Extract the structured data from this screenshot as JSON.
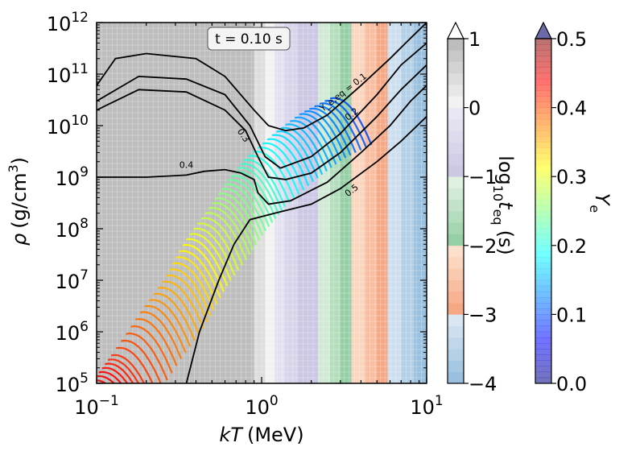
{
  "chart_data": {
    "type": "heatmap",
    "title": "",
    "annotation": {
      "time_label": "t = 0.10 s"
    },
    "xlabel": {
      "base": "kT",
      "unit": "(MeV)"
    },
    "ylabel": {
      "base": "ρ",
      "unit": "(g/cm",
      "sup": "3",
      "close": ")"
    },
    "xscale": "log",
    "yscale": "log",
    "xlim": [
      0.1,
      10
    ],
    "ylim": [
      100000,
      1000000000000
    ],
    "xticks": [
      {
        "value": 0.1,
        "base": "10",
        "exp": "−1"
      },
      {
        "value": 1,
        "base": "10",
        "exp": "0"
      },
      {
        "value": 10,
        "base": "10",
        "exp": "1"
      }
    ],
    "yticks": [
      {
        "value": 100000,
        "base": "10",
        "exp": "5"
      },
      {
        "value": 1000000,
        "base": "10",
        "exp": "6"
      },
      {
        "value": 10000000,
        "base": "10",
        "exp": "7"
      },
      {
        "value": 100000000,
        "base": "10",
        "exp": "8"
      },
      {
        "value": 1000000000,
        "base": "10",
        "exp": "9"
      },
      {
        "value": 10000000000,
        "base": "10",
        "exp": "10"
      },
      {
        "value": 100000000000,
        "base": "10",
        "exp": "11"
      },
      {
        "value": 1000000000000,
        "base": "10",
        "exp": "12"
      }
    ],
    "background_map": {
      "quantity": "log10 t_eq (s)",
      "columns": [
        {
          "x_min": 0.1,
          "x_max": 0.9,
          "log_t_eq": 0.85
        },
        {
          "x_min": 0.9,
          "x_max": 1.05,
          "log_t_eq": 0.4
        },
        {
          "x_min": 1.05,
          "x_max": 1.2,
          "log_t_eq": 0.05
        },
        {
          "x_min": 1.2,
          "x_max": 1.38,
          "log_t_eq": -0.2
        },
        {
          "x_min": 1.38,
          "x_max": 1.65,
          "log_t_eq": -0.55
        },
        {
          "x_min": 1.65,
          "x_max": 1.9,
          "log_t_eq": -0.85
        },
        {
          "x_min": 1.9,
          "x_max": 2.2,
          "log_t_eq": -1.0
        },
        {
          "x_min": 2.2,
          "x_max": 2.6,
          "log_t_eq": -1.3
        },
        {
          "x_min": 2.6,
          "x_max": 3.0,
          "log_t_eq": -1.55
        },
        {
          "x_min": 3.0,
          "x_max": 3.5,
          "log_t_eq": -1.9
        },
        {
          "x_min": 3.5,
          "x_max": 4.2,
          "log_t_eq": -2.3
        },
        {
          "x_min": 4.2,
          "x_max": 5.0,
          "log_t_eq": -2.65
        },
        {
          "x_min": 5.0,
          "x_max": 5.8,
          "log_t_eq": -2.95
        },
        {
          "x_min": 5.8,
          "x_max": 7.0,
          "log_t_eq": -3.3
        },
        {
          "x_min": 7.0,
          "x_max": 8.4,
          "log_t_eq": -3.6
        },
        {
          "x_min": 8.4,
          "x_max": 10.0,
          "log_t_eq": -3.85
        }
      ]
    },
    "ye_eq_contours": [
      {
        "level": 0.1,
        "label": "Y_e,eq = 0.1",
        "points": [
          [
            0.1,
            60000000000
          ],
          [
            0.13,
            200000000000
          ],
          [
            0.2,
            250000000000
          ],
          [
            0.4,
            200000000000
          ],
          [
            0.6,
            90000000000
          ],
          [
            0.9,
            20000000000
          ],
          [
            1.1,
            10000000000
          ],
          [
            1.4,
            8000000000
          ],
          [
            1.8,
            9000000000
          ],
          [
            2.5,
            16000000000
          ],
          [
            4.0,
            60000000000
          ],
          [
            6.0,
            200000000000
          ],
          [
            8.0,
            500000000000
          ],
          [
            10.0,
            1000000000000
          ]
        ]
      },
      {
        "level": 0.2,
        "label": "0.2",
        "points": [
          [
            0.1,
            30000000000
          ],
          [
            0.18,
            90000000000
          ],
          [
            0.35,
            80000000000
          ],
          [
            0.6,
            40000000000
          ],
          [
            0.85,
            10000000000
          ],
          [
            1.05,
            2500000000
          ],
          [
            1.3,
            1500000000
          ],
          [
            2.0,
            2500000000
          ],
          [
            3.0,
            7000000000
          ],
          [
            5.0,
            40000000000
          ],
          [
            7.0,
            150000000000
          ],
          [
            10.0,
            400000000000
          ]
        ]
      },
      {
        "level": 0.3,
        "label": "0.3",
        "points": [
          [
            0.1,
            20000000000
          ],
          [
            0.18,
            50000000000
          ],
          [
            0.35,
            45000000000
          ],
          [
            0.6,
            20000000000
          ],
          [
            0.8,
            8000000000
          ],
          [
            0.95,
            2500000000
          ],
          [
            1.1,
            1000000000
          ],
          [
            1.4,
            900000000
          ],
          [
            2.0,
            1200000000
          ],
          [
            3.0,
            3000000000
          ],
          [
            5.0,
            15000000000
          ],
          [
            7.0,
            50000000000
          ],
          [
            10.0,
            150000000000
          ]
        ]
      },
      {
        "level": 0.4,
        "label": "0.4",
        "points": [
          [
            0.1,
            1000000000
          ],
          [
            0.2,
            1000000000
          ],
          [
            0.35,
            1100000000
          ],
          [
            0.45,
            1300000000
          ],
          [
            0.6,
            1400000000
          ],
          [
            0.75,
            1200000000
          ],
          [
            0.9,
            900000000
          ],
          [
            0.95,
            500000000
          ],
          [
            1.1,
            300000000
          ],
          [
            1.5,
            350000000
          ],
          [
            2.5,
            800000000
          ],
          [
            4.0,
            3000000000
          ],
          [
            6.0,
            10000000000
          ],
          [
            8.0,
            30000000000
          ],
          [
            10.0,
            60000000000
          ]
        ]
      },
      {
        "level": 0.5,
        "label": "0.5",
        "points": [
          [
            0.35,
            100000
          ],
          [
            0.42,
            1000000
          ],
          [
            0.55,
            10000000
          ],
          [
            0.68,
            50000000
          ],
          [
            0.85,
            150000000
          ],
          [
            1.2,
            200000000
          ],
          [
            2.0,
            300000000
          ],
          [
            3.0,
            600000000
          ],
          [
            5.0,
            2000000000
          ],
          [
            7.0,
            5000000000
          ],
          [
            10.0,
            15000000000
          ]
        ]
      }
    ],
    "trajectories": {
      "description": "Outflow trajectories colored by Ye from ~0.45 (low T, low density) to ~0.1 (high T, high density)",
      "ridge": [
        [
          0.16,
          100000
        ],
        [
          0.2,
          300000
        ],
        [
          0.3,
          2000000
        ],
        [
          0.45,
          10000000
        ],
        [
          0.6,
          50000000
        ],
        [
          0.8,
          200000000
        ],
        [
          1.0,
          700000000
        ],
        [
          1.3,
          2000000000
        ],
        [
          2.0,
          6000000000
        ],
        [
          3.0,
          15000000000
        ],
        [
          4.5,
          30000000000
        ]
      ],
      "ye_range": [
        0.1,
        0.45
      ]
    },
    "colorbars": [
      {
        "name": "t_eq",
        "label_base": "log",
        "label_sub": "10",
        "label_var": "t",
        "label_var_sub": "eq",
        "label_unit": "(s)",
        "range": [
          -4,
          1
        ],
        "ticks": [
          -4,
          -3,
          -2,
          -1,
          0,
          1
        ],
        "tick_labels": [
          "−4",
          "−3",
          "−2",
          "−1",
          "0",
          "1"
        ]
      },
      {
        "name": "Ye",
        "label": "Y",
        "label_sub": "e",
        "range": [
          0.0,
          0.5
        ],
        "ticks": [
          0.0,
          0.1,
          0.2,
          0.3,
          0.4,
          0.5
        ],
        "tick_labels": [
          "0.0",
          "0.1",
          "0.2",
          "0.3",
          "0.4",
          "0.5"
        ]
      }
    ],
    "legend": "none",
    "grid": true
  }
}
